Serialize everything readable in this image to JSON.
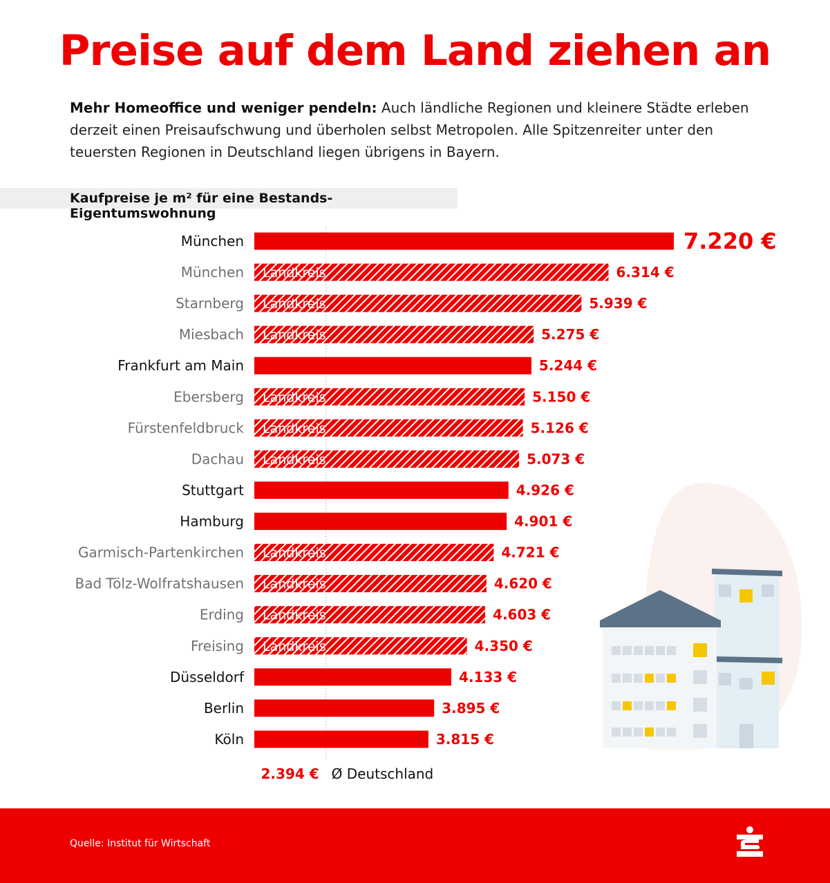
{
  "title": "Preise auf dem Land ziehen an",
  "intro": {
    "lead": "Mehr Homeoffice und weniger pendeln:",
    "text": " Auch ländliche Regionen und kleinere Städte erleben derzeit einen Preisaufschwung und überholen selbst Metropolen. Alle Spitzenreiter unter den teuersten Regionen in Deutschland liegen übrigens in Bayern."
  },
  "colors": {
    "accent": "#ee0000",
    "city_label": "#111111",
    "district_label": "#707070",
    "building_roof": "#5b7287",
    "building_wall": "#f3f6f9",
    "building_window": "#d6dde5",
    "building_light": "#f6c700",
    "blob": "#fbf1ee"
  },
  "chart_data": {
    "type": "bar",
    "orientation": "horizontal",
    "title": "Kaufpreise je m² für eine Bestands-Eigentumswohnung",
    "unit": "€",
    "district_tag": "Landkreis",
    "categories": [
      "München",
      "München",
      "Starnberg",
      "Miesbach",
      "Frankfurt am Main",
      "Ebersberg",
      "Fürstenfeldbruck",
      "Dachau",
      "Stuttgart",
      "Hamburg",
      "Garmisch-Partenkirchen",
      "Bad Tölz-Wolfratshausen",
      "Erding",
      "Freising",
      "Düsseldorf",
      "Berlin",
      "Köln"
    ],
    "values": [
      7220,
      6314,
      5939,
      5275,
      5244,
      5150,
      5126,
      5073,
      4926,
      4901,
      4721,
      4620,
      4603,
      4350,
      4133,
      3895,
      3815
    ],
    "value_labels": [
      "7.220 €",
      "6.314 €",
      "5.939 €",
      "5.275 €",
      "5.244 €",
      "5.150 €",
      "5.126 €",
      "5.073 €",
      "4.926 €",
      "4.901 €",
      "4.721 €",
      "4.620 €",
      "4.603 €",
      "4.350 €",
      "4.133 €",
      "3.895 €",
      "3.815 €"
    ],
    "is_district": [
      false,
      true,
      true,
      true,
      false,
      true,
      true,
      true,
      false,
      false,
      true,
      true,
      true,
      true,
      false,
      false,
      false
    ],
    "reference": {
      "value": 2394,
      "value_label": "2.394 €",
      "label": "Ø Deutschland"
    },
    "xlim": [
      1400,
      7220
    ]
  },
  "footer": {
    "source": "Quelle: Institut für Wirtschaft"
  }
}
